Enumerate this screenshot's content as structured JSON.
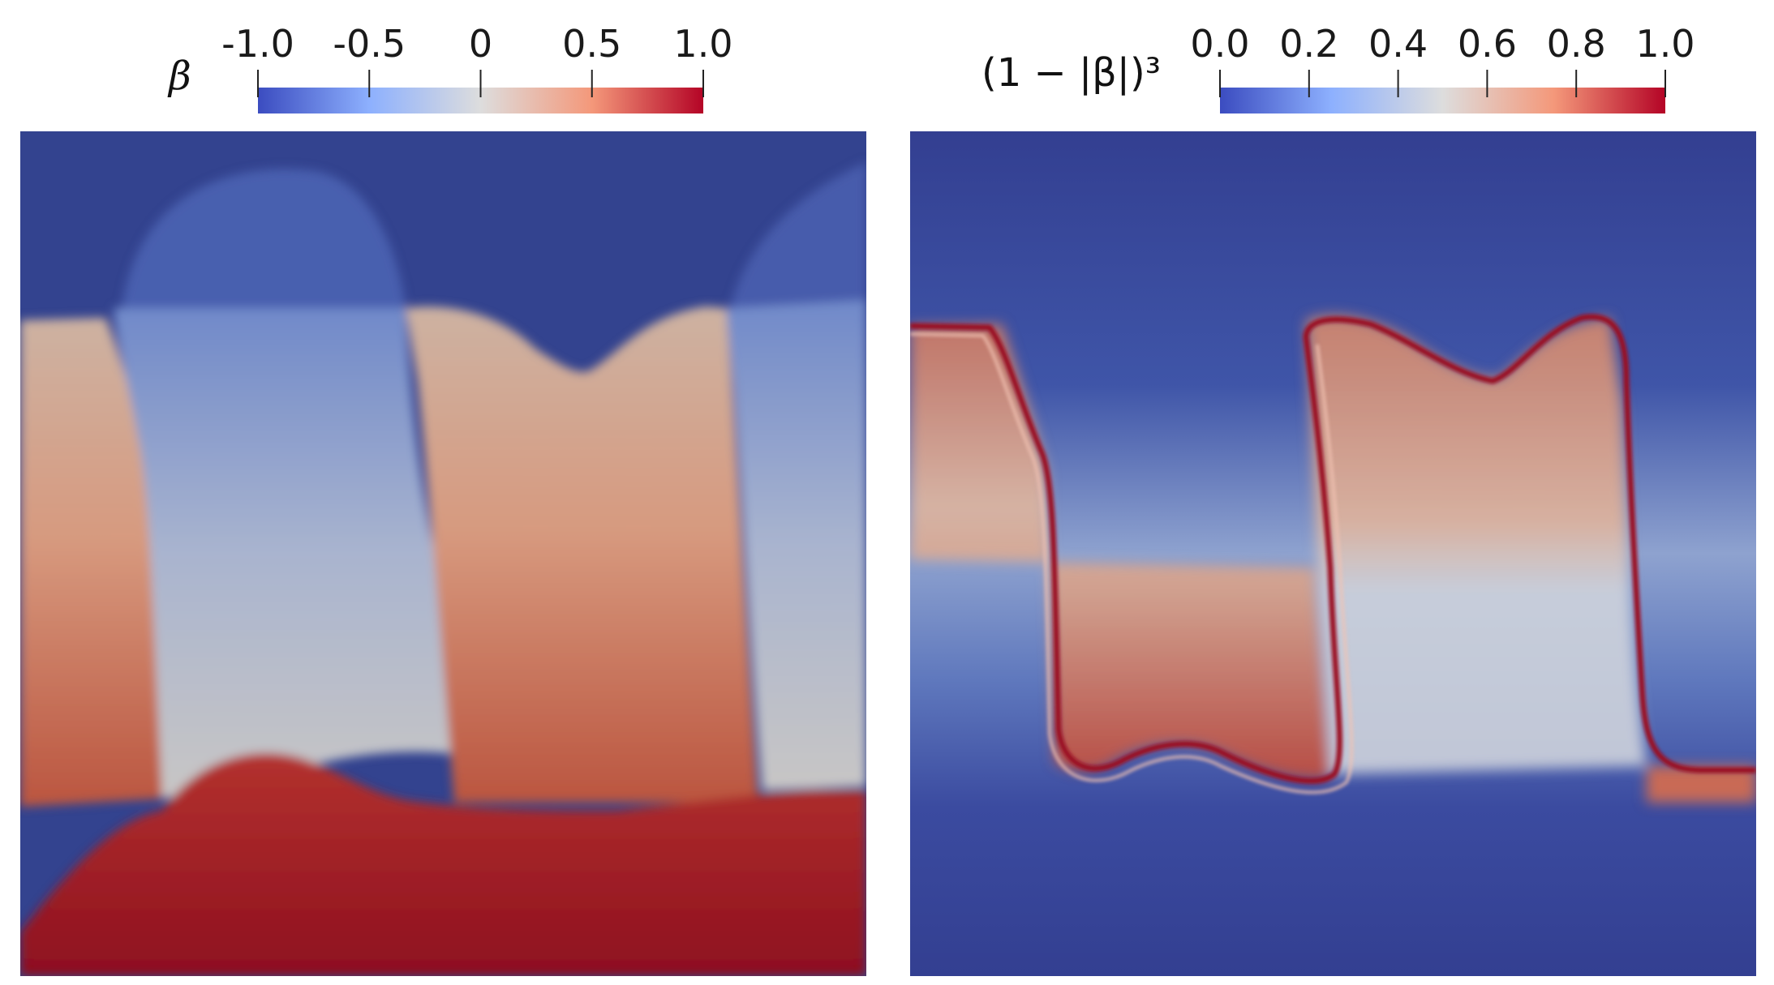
{
  "chart_data": [
    {
      "type": "heatmap",
      "colorbar": {
        "label": "β",
        "ticks": [
          -1.0,
          -0.5,
          0,
          0.5,
          1.0
        ],
        "tick_labels": [
          "-1.0",
          "-0.5",
          "0",
          "0.5",
          "1.0"
        ],
        "range": [
          -1.0,
          1.0
        ],
        "placement": "top"
      },
      "colormap": [
        "#3b4cc0",
        "#dddddd",
        "#b40426"
      ]
    },
    {
      "type": "heatmap",
      "colorbar": {
        "label": "(1 − |β|)³",
        "ticks": [
          0.0,
          0.2,
          0.4,
          0.6,
          0.8,
          1.0
        ],
        "tick_labels": [
          "0.0",
          "0.2",
          "0.4",
          "0.6",
          "0.8",
          "1.0"
        ],
        "range": [
          0.0,
          1.0
        ],
        "placement": "top"
      },
      "colormap": [
        "#3b4cc0",
        "#dddddd",
        "#b40426"
      ]
    }
  ]
}
